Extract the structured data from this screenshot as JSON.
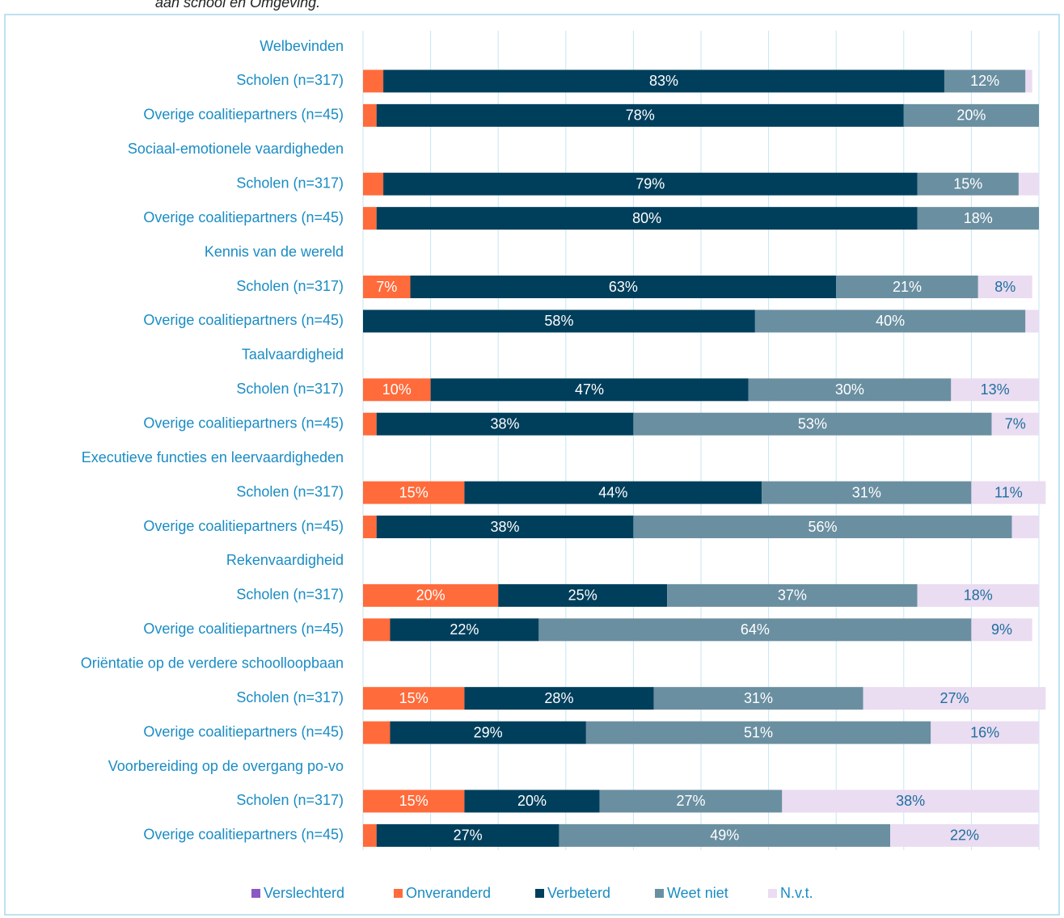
{
  "chart_data": {
    "type": "stacked_bar_horizontal",
    "title": "aan school en Omgeving.",
    "categories": [
      "Welbevinden",
      "Scholen (n=317)",
      "Overige coalitiepartners (n=45)",
      "Sociaal-emotionele vaardigheden",
      "Scholen (n=317)",
      "Overige coalitiepartners (n=45)",
      "Kennis van de wereld",
      "Scholen (n=317)",
      "Overige coalitiepartners (n=45)",
      "Taalvaardigheid",
      "Scholen (n=317)",
      "Overige coalitiepartners (n=45)",
      "Executieve functies en leervaardigheden",
      "Scholen (n=317)",
      "Overige coalitiepartners (n=45)",
      "Rekenvaardigheid",
      "Scholen (n=317)",
      "Overige coalitiepartners (n=45)",
      "Oriëntatie op de verdere schoolloopbaan",
      "Scholen (n=317)",
      "Overige coalitiepartners (n=45)",
      "Voorbereiding op de overgang po-vo",
      "Scholen (n=317)",
      "Overige coalitiepartners (n=45)"
    ],
    "series": [
      {
        "name": "Verslechterd",
        "color": "#8b57c4",
        "label_color": "#ffffff",
        "values": [
          null,
          0,
          0,
          null,
          0,
          0,
          null,
          0,
          0,
          null,
          0,
          0,
          null,
          0,
          0,
          null,
          0,
          0,
          null,
          0,
          0,
          null,
          0,
          0
        ]
      },
      {
        "name": "Onveranderd",
        "color": "#ff6b3b",
        "label_color": "#ffffff",
        "values": [
          null,
          3,
          2,
          null,
          3,
          2,
          null,
          7,
          0,
          null,
          10,
          2,
          null,
          15,
          2,
          null,
          20,
          4,
          null,
          15,
          4,
          null,
          15,
          2
        ],
        "value_labels": [
          null,
          null,
          null,
          null,
          null,
          null,
          null,
          "7%",
          null,
          null,
          "10%",
          null,
          null,
          "15%",
          null,
          null,
          "20%",
          null,
          null,
          "15%",
          null,
          null,
          "15%",
          null
        ]
      },
      {
        "name": "Verbeterd",
        "color": "#003f5c",
        "label_color": "#ffffff",
        "values": [
          null,
          83,
          78,
          null,
          79,
          80,
          null,
          63,
          58,
          null,
          47,
          38,
          null,
          44,
          38,
          null,
          25,
          22,
          null,
          28,
          29,
          null,
          20,
          27
        ],
        "value_labels": [
          null,
          "83%",
          "78%",
          null,
          "79%",
          "80%",
          null,
          "63%",
          "58%",
          null,
          "47%",
          "38%",
          null,
          "44%",
          "38%",
          null,
          "25%",
          "22%",
          null,
          "28%",
          "29%",
          null,
          "20%",
          "27%"
        ]
      },
      {
        "name": "Weet niet",
        "color": "#6a8fa1",
        "label_color": "#ffffff",
        "values": [
          null,
          12,
          20,
          null,
          15,
          18,
          null,
          21,
          40,
          null,
          30,
          53,
          null,
          31,
          56,
          null,
          37,
          64,
          null,
          31,
          51,
          null,
          27,
          49
        ],
        "value_labels": [
          null,
          "12%",
          "20%",
          null,
          "15%",
          "18%",
          null,
          "21%",
          "40%",
          null,
          "30%",
          "53%",
          null,
          "31%",
          "56%",
          null,
          "37%",
          "64%",
          null,
          "31%",
          "51%",
          null,
          "27%",
          "49%"
        ]
      },
      {
        "name": "N.v.t.",
        "color": "#eadcf1",
        "label_color": "#1f6f9f",
        "values": [
          null,
          1,
          0,
          null,
          3,
          0,
          null,
          8,
          2,
          null,
          13,
          7,
          null,
          11,
          4,
          null,
          18,
          9,
          null,
          27,
          16,
          null,
          38,
          22
        ],
        "value_labels": [
          null,
          null,
          null,
          null,
          null,
          null,
          null,
          "8%",
          null,
          null,
          "13%",
          "7%",
          null,
          "11%",
          null,
          null,
          "18%",
          "9%",
          null,
          "27%",
          "16%",
          null,
          "38%",
          "22%"
        ]
      }
    ],
    "xlim": [
      0,
      100
    ],
    "xticks": [
      0,
      10,
      20,
      30,
      40,
      50,
      60,
      70,
      80,
      90,
      100
    ],
    "grid": true,
    "legend": "bottom"
  }
}
